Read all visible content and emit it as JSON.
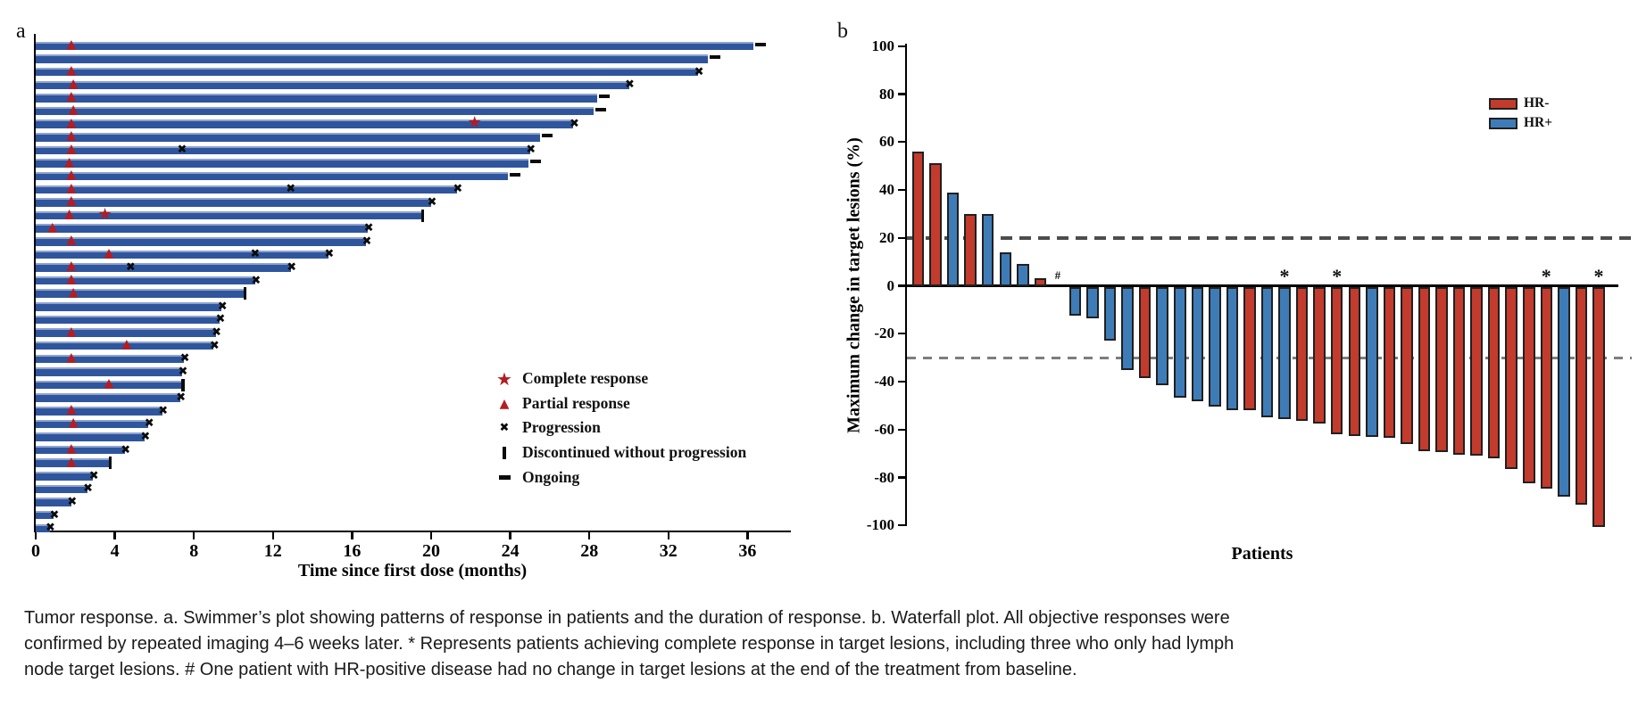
{
  "figure": {
    "panel_a_label": "a",
    "panel_b_label": "b"
  },
  "icons": {
    "star_glyph": "★",
    "triangle_glyph": "▲",
    "cross_glyph": "✖"
  },
  "caption": {
    "lines": [
      "Tumor response. a. Swimmer’s plot showing patterns of response in patients and the duration of response. b. Waterfall plot. All objective responses were",
      "confirmed by repeated imaging 4–6 weeks later. * Represents patients achieving complete response in target lesions, including three who only had lymph",
      "node target lesions. # One patient with HR-positive disease had no change in target lesions at the end of the treatment from baseline."
    ]
  },
  "chart_data": [
    {
      "type": "swimmer",
      "xlabel": "Time since first dose (months)",
      "x_ticks": [
        0,
        4,
        8,
        12,
        16,
        20,
        24,
        28,
        32,
        36
      ],
      "xlim": [
        0,
        38.2
      ],
      "bar_color": "#2f559c",
      "marker_colors": {
        "complete_response": "#b01d23",
        "partial_response": "#b51d22",
        "progression": "#0b0b0b"
      },
      "legend": [
        {
          "marker": "star",
          "label": "Complete response"
        },
        {
          "marker": "triangle",
          "label": "Partial response"
        },
        {
          "marker": "cross",
          "label": "Progression"
        },
        {
          "marker": "vbar",
          "label": "Discontinued without progression"
        },
        {
          "marker": "dash",
          "label": "Ongoing"
        }
      ],
      "patients": [
        {
          "duration": 36.3,
          "end": "ongoing",
          "pr": 1.8
        },
        {
          "duration": 34.0,
          "end": "ongoing"
        },
        {
          "duration": 33.5,
          "end": "progression",
          "pr": 1.8
        },
        {
          "duration": 30.0,
          "end": "progression",
          "pr": 1.9
        },
        {
          "duration": 28.4,
          "end": "ongoing",
          "pr": 1.8
        },
        {
          "duration": 28.2,
          "end": "ongoing",
          "pr": 1.9
        },
        {
          "duration": 27.2,
          "end": "progression",
          "pr": 1.8,
          "cr": 22.2
        },
        {
          "duration": 25.5,
          "end": "ongoing",
          "pr": 1.8
        },
        {
          "duration": 25.0,
          "end": "progression",
          "pr": 1.8,
          "x_events": [
            7.4
          ]
        },
        {
          "duration": 24.9,
          "end": "ongoing",
          "pr": 1.7
        },
        {
          "duration": 23.9,
          "end": "ongoing",
          "pr": 1.8
        },
        {
          "duration": 21.3,
          "end": "progression",
          "pr": 1.8,
          "x_events": [
            12.9
          ]
        },
        {
          "duration": 20.0,
          "end": "progression",
          "pr": 1.8
        },
        {
          "duration": 19.5,
          "end": "discontinued",
          "pr": 1.7,
          "cr": 3.5
        },
        {
          "duration": 16.8,
          "end": "progression",
          "pr": 0.85
        },
        {
          "duration": 16.7,
          "end": "progression",
          "pr": 1.8
        },
        {
          "duration": 14.8,
          "end": "progression",
          "pr": 3.7,
          "x_events": [
            11.1
          ]
        },
        {
          "duration": 12.9,
          "end": "progression",
          "pr": 1.8,
          "x_events": [
            4.8
          ]
        },
        {
          "duration": 11.1,
          "end": "progression",
          "pr": 1.8
        },
        {
          "duration": 10.5,
          "end": "discontinued",
          "pr": 1.9
        },
        {
          "duration": 9.4,
          "end": "progression"
        },
        {
          "duration": 9.3,
          "end": "progression"
        },
        {
          "duration": 9.1,
          "end": "progression",
          "pr": 1.8
        },
        {
          "duration": 9.0,
          "end": "progression",
          "pr": 4.6
        },
        {
          "duration": 7.5,
          "end": "progression",
          "pr": 1.8
        },
        {
          "duration": 7.4,
          "end": "progression"
        },
        {
          "duration": 7.36,
          "end": "discontinued",
          "pr": 3.7
        },
        {
          "duration": 7.3,
          "end": "progression"
        },
        {
          "duration": 6.4,
          "end": "progression",
          "pr": 1.8
        },
        {
          "duration": 5.7,
          "end": "progression",
          "pr": 1.9
        },
        {
          "duration": 5.5,
          "end": "progression"
        },
        {
          "duration": 4.5,
          "end": "progression",
          "pr": 1.8
        },
        {
          "duration": 3.7,
          "end": "discontinued",
          "pr": 1.8
        },
        {
          "duration": 2.9,
          "end": "progression"
        },
        {
          "duration": 2.6,
          "end": "progression"
        },
        {
          "duration": 1.8,
          "end": "progression"
        },
        {
          "duration": 0.9,
          "end": "progression"
        },
        {
          "duration": 0.7,
          "end": "progression"
        }
      ]
    },
    {
      "type": "waterfall",
      "xlabel": "Patients",
      "ylabel": "Maximum change in target lesions (%)",
      "ylim": [
        -100,
        100
      ],
      "y_ticks": [
        100,
        80,
        60,
        40,
        20,
        0,
        -20,
        -40,
        -60,
        -80,
        -100
      ],
      "reference_lines": [
        20,
        -30
      ],
      "legend": [
        {
          "label": "HR-",
          "color": "#c23b2c"
        },
        {
          "label": "HR+",
          "color": "#3e7cb8"
        }
      ],
      "annotations": {
        "hash": "#",
        "star": "*"
      },
      "patients": [
        {
          "value": 56,
          "group": "HR-"
        },
        {
          "value": 51,
          "group": "HR-"
        },
        {
          "value": 39,
          "group": "HR+"
        },
        {
          "value": 30,
          "group": "HR-"
        },
        {
          "value": 30,
          "group": "HR+"
        },
        {
          "value": 14,
          "group": "HR+"
        },
        {
          "value": 9,
          "group": "HR+"
        },
        {
          "value": 3,
          "group": "HR-"
        },
        {
          "value": 0,
          "group": "HR+",
          "mark": "#"
        },
        {
          "value": -12,
          "group": "HR+"
        },
        {
          "value": -13,
          "group": "HR+"
        },
        {
          "value": -22.5,
          "group": "HR+"
        },
        {
          "value": -34.5,
          "group": "HR+"
        },
        {
          "value": -38,
          "group": "HR-"
        },
        {
          "value": -41,
          "group": "HR+"
        },
        {
          "value": -46,
          "group": "HR+"
        },
        {
          "value": -47.5,
          "group": "HR+"
        },
        {
          "value": -50,
          "group": "HR+"
        },
        {
          "value": -51.5,
          "group": "HR+"
        },
        {
          "value": -51.5,
          "group": "HR-"
        },
        {
          "value": -54.5,
          "group": "HR+"
        },
        {
          "value": -55,
          "group": "HR+",
          "mark": "*"
        },
        {
          "value": -56,
          "group": "HR-"
        },
        {
          "value": -57,
          "group": "HR-"
        },
        {
          "value": -61.5,
          "group": "HR-",
          "mark": "*"
        },
        {
          "value": -62,
          "group": "HR-"
        },
        {
          "value": -62.5,
          "group": "HR+"
        },
        {
          "value": -63,
          "group": "HR-"
        },
        {
          "value": -65.5,
          "group": "HR-"
        },
        {
          "value": -68.5,
          "group": "HR-"
        },
        {
          "value": -69,
          "group": "HR-"
        },
        {
          "value": -70,
          "group": "HR-"
        },
        {
          "value": -70.5,
          "group": "HR-"
        },
        {
          "value": -71.5,
          "group": "HR-"
        },
        {
          "value": -76,
          "group": "HR-"
        },
        {
          "value": -82,
          "group": "HR-"
        },
        {
          "value": -84,
          "group": "HR-",
          "mark": "*"
        },
        {
          "value": -87.5,
          "group": "HR+"
        },
        {
          "value": -91,
          "group": "HR-"
        },
        {
          "value": -100,
          "group": "HR-",
          "mark": "*"
        }
      ]
    }
  ]
}
